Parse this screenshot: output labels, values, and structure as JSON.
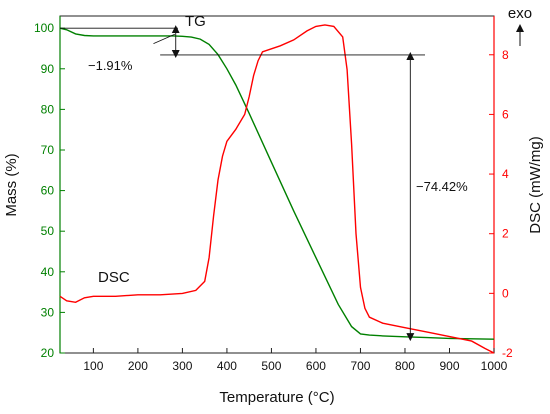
{
  "chart_data": {
    "type": "line",
    "xlabel": "Temperature (°C)",
    "ylabel_left": "Mass (%)",
    "ylabel_right": "DSC (mW/mg)",
    "exo_label": "exo",
    "xlim": [
      25,
      1000
    ],
    "ylim_left": [
      20,
      103
    ],
    "ylim_right": [
      -2,
      9.3
    ],
    "x_ticks": [
      100,
      200,
      300,
      400,
      500,
      600,
      700,
      800,
      900,
      1000
    ],
    "y_left_ticks": [
      20,
      30,
      40,
      50,
      60,
      70,
      80,
      90,
      100
    ],
    "y_right_ticks": [
      -2,
      0,
      2,
      4,
      6,
      8
    ],
    "left_axis_color": "#008000",
    "right_axis_color": "#ff0000",
    "series": [
      {
        "name": "TG",
        "axis": "left",
        "color": "#008000",
        "x": [
          25,
          40,
          60,
          80,
          100,
          150,
          200,
          250,
          280,
          300,
          320,
          340,
          360,
          380,
          400,
          420,
          450,
          500,
          550,
          600,
          650,
          680,
          700,
          720,
          750,
          800,
          850,
          900,
          950,
          1000
        ],
        "y": [
          100,
          99.6,
          98.6,
          98.2,
          98.1,
          98.1,
          98.1,
          98.1,
          98.1,
          98.0,
          97.8,
          97.3,
          96.0,
          93.5,
          90.0,
          86.0,
          79.0,
          67.0,
          55.0,
          43.5,
          32.0,
          26.5,
          24.7,
          24.4,
          24.2,
          24.0,
          23.8,
          23.6,
          23.5,
          23.4
        ]
      },
      {
        "name": "DSC",
        "axis": "right",
        "color": "#ff0000",
        "x": [
          25,
          40,
          60,
          80,
          100,
          150,
          200,
          250,
          300,
          330,
          350,
          360,
          370,
          380,
          390,
          400,
          420,
          440,
          450,
          460,
          470,
          480,
          500,
          520,
          550,
          580,
          600,
          620,
          640,
          660,
          670,
          680,
          690,
          700,
          710,
          720,
          750,
          800,
          850,
          900,
          950,
          980,
          1000
        ],
        "y": [
          -0.1,
          -0.25,
          -0.3,
          -0.15,
          -0.1,
          -0.1,
          -0.05,
          -0.05,
          0.0,
          0.1,
          0.4,
          1.2,
          2.6,
          3.8,
          4.6,
          5.1,
          5.5,
          6.0,
          6.6,
          7.3,
          7.8,
          8.1,
          8.2,
          8.3,
          8.5,
          8.8,
          8.95,
          9.0,
          8.95,
          8.6,
          7.5,
          5.0,
          2.0,
          0.2,
          -0.5,
          -0.8,
          -1.0,
          -1.15,
          -1.3,
          -1.45,
          -1.6,
          -1.85,
          -2.0
        ]
      }
    ],
    "annotations": {
      "tg_label": "TG",
      "dsc_label": "DSC",
      "step1_text": "−1.91%",
      "step1_from": 100,
      "step1_to": 98.09,
      "step2_text": "−74.42%",
      "step2_from": 98.09,
      "step2_to": 23.67
    }
  }
}
